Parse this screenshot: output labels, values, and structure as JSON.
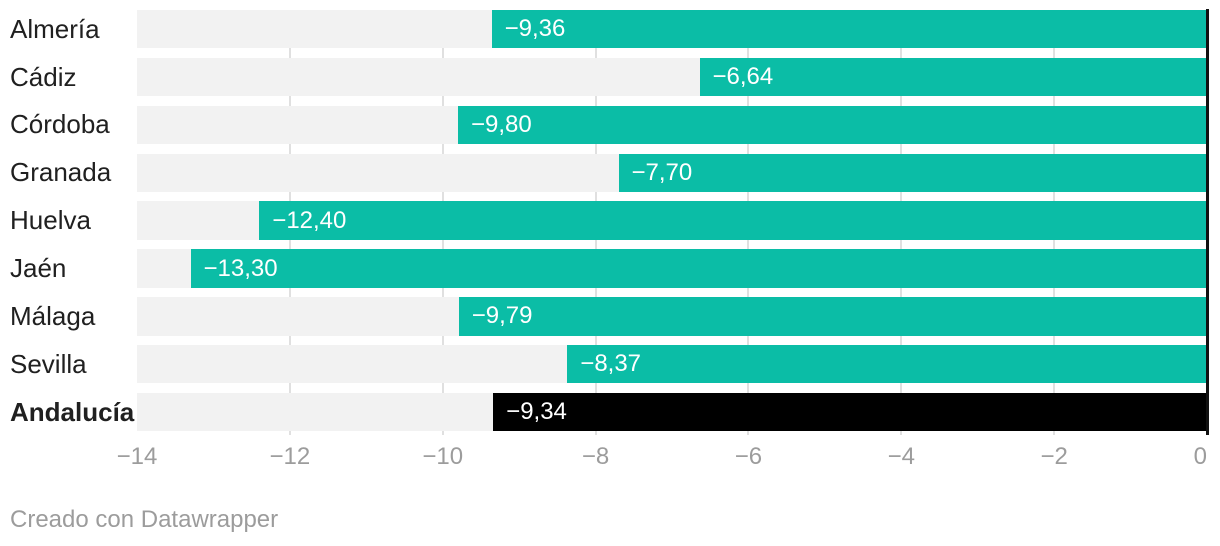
{
  "chart_data": {
    "type": "bar",
    "orientation": "horizontal",
    "categories": [
      "Almería",
      "Cádiz",
      "Córdoba",
      "Granada",
      "Huelva",
      "Jaén",
      "Málaga",
      "Sevilla",
      "Andalucía"
    ],
    "values": [
      -9.36,
      -6.64,
      -9.8,
      -7.7,
      -12.4,
      -13.3,
      -9.79,
      -8.37,
      -9.34
    ],
    "value_labels": [
      "−9,36",
      "−6,64",
      "−9,80",
      "−7,70",
      "−12,40",
      "−13,30",
      "−9,79",
      "−8,37",
      "−9,34"
    ],
    "highlight_index": 8,
    "xlim": [
      -14,
      0
    ],
    "x_ticks": [
      -14,
      -12,
      -10,
      -8,
      -6,
      -4,
      -2,
      0
    ],
    "x_tick_labels": [
      "−14",
      "−12",
      "−10",
      "−8",
      "−6",
      "−4",
      "−2",
      "0"
    ],
    "grid": true,
    "legend_position": "none",
    "colors": {
      "bar": "#0bbda6",
      "highlight_bar": "#000000",
      "row_background": "#f2f2f2",
      "gridline": "#e0e0e0",
      "axis_line": "#111111",
      "tick_text": "#9c9c9c",
      "category_text": "#202020",
      "value_text": "#ffffff"
    }
  },
  "footer": {
    "credit": "Creado con Datawrapper"
  }
}
